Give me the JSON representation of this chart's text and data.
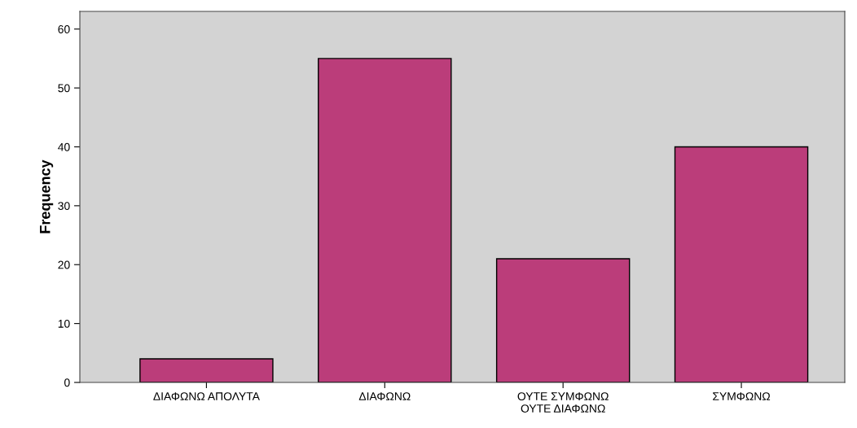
{
  "chart_data": {
    "type": "bar",
    "ylabel": "Frequency",
    "categories": [
      "ΔΙΑΦΩΝΩ ΑΠΟΛΥΤΑ",
      "ΔΙΑΦΩΝΩ",
      "ΟΥΤΕ ΣΥΜΦΩΝΩ\nΟΥΤΕ ΔΙΑΦΩΝΩ",
      "ΣΥΜΦΩΝΩ"
    ],
    "values": [
      4,
      55,
      21,
      40
    ],
    "color": "#bb3d7a",
    "ylim": [
      0,
      63
    ],
    "yticks": [
      0,
      10,
      20,
      30,
      40,
      50,
      60
    ],
    "grid": false
  }
}
